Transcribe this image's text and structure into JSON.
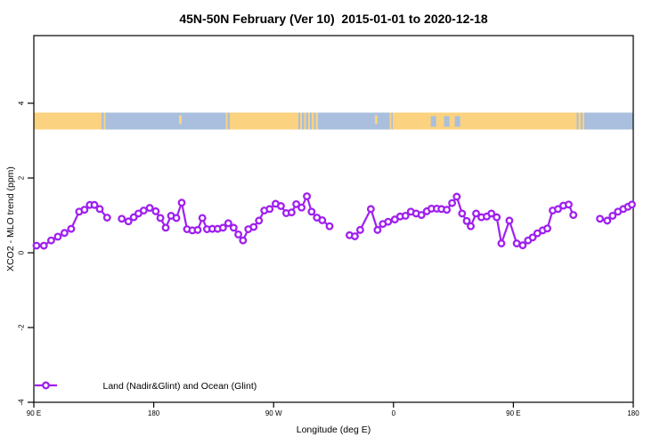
{
  "chart_data": {
    "type": "line",
    "title": "45N-50N February (Ver 10)  2015-01-01 to 2020-12-18",
    "xlabel": "Longitude (deg E)",
    "ylabel": "XCO2 - MLO trend (ppm)",
    "xlim": [
      90,
      540
    ],
    "ylim": [
      -4,
      5.8
    ],
    "grid": false,
    "legend_position": "bottom-left",
    "x_ticks": [
      {
        "lon": 90,
        "label": "90 E"
      },
      {
        "lon": 180,
        "label": "180"
      },
      {
        "lon": 270,
        "label": "90 W"
      },
      {
        "lon": 360,
        "label": "0"
      },
      {
        "lon": 450,
        "label": "90 E"
      },
      {
        "lon": 540,
        "label": "180"
      }
    ],
    "y_ticks": [
      -4,
      -2,
      0,
      2,
      4
    ],
    "series": [
      {
        "name": "Land (Nadir&Glint) and Ocean (Glint)",
        "color": "#A020F0",
        "marker": "open-circle",
        "segments": [
          [
            [
              92,
              0.19
            ],
            [
              97.5,
              0.19
            ],
            [
              103,
              0.33
            ],
            [
              108,
              0.43
            ],
            [
              113,
              0.53
            ],
            [
              118,
              0.64
            ],
            [
              124,
              1.1
            ],
            [
              128,
              1.15
            ],
            [
              132,
              1.28
            ],
            [
              135.5,
              1.28
            ],
            [
              139.5,
              1.17
            ],
            [
              145,
              0.94
            ]
          ],
          [
            [
              156,
              0.91
            ],
            [
              161,
              0.84
            ],
            [
              165,
              0.95
            ],
            [
              168.5,
              1.05
            ],
            [
              172.5,
              1.13
            ],
            [
              177,
              1.2
            ],
            [
              181.5,
              1.11
            ],
            [
              185,
              0.93
            ],
            [
              189,
              0.67
            ],
            [
              193,
              0.99
            ],
            [
              197,
              0.93
            ],
            [
              201,
              1.34
            ],
            [
              205,
              0.63
            ],
            [
              209,
              0.6
            ],
            [
              213,
              0.61
            ],
            [
              216.5,
              0.93
            ],
            [
              220,
              0.63
            ],
            [
              224,
              0.64
            ],
            [
              228,
              0.64
            ],
            [
              232,
              0.67
            ],
            [
              236,
              0.79
            ],
            [
              240,
              0.67
            ],
            [
              243.5,
              0.49
            ],
            [
              247,
              0.33
            ],
            [
              251,
              0.63
            ],
            [
              255,
              0.69
            ],
            [
              259,
              0.86
            ],
            [
              263,
              1.13
            ],
            [
              267,
              1.17
            ],
            [
              271.5,
              1.31
            ],
            [
              275.5,
              1.25
            ],
            [
              279.5,
              1.06
            ],
            [
              283.5,
              1.08
            ],
            [
              287,
              1.3
            ],
            [
              291,
              1.21
            ],
            [
              295,
              1.51
            ],
            [
              298.5,
              1.1
            ],
            [
              302.5,
              0.94
            ],
            [
              306.5,
              0.87
            ],
            [
              312,
              0.71
            ]
          ],
          [
            [
              327,
              0.47
            ],
            [
              331,
              0.44
            ],
            [
              335,
              0.61
            ],
            [
              343,
              1.17
            ],
            [
              348,
              0.61
            ],
            [
              352,
              0.77
            ],
            [
              356,
              0.83
            ],
            [
              361,
              0.89
            ],
            [
              365,
              0.97
            ],
            [
              369,
              0.99
            ],
            [
              373,
              1.1
            ],
            [
              377,
              1.05
            ],
            [
              381,
              1.01
            ],
            [
              385,
              1.11
            ],
            [
              388.5,
              1.18
            ],
            [
              392.5,
              1.18
            ],
            [
              396,
              1.17
            ],
            [
              400,
              1.15
            ],
            [
              404,
              1.33
            ],
            [
              407.5,
              1.5
            ],
            [
              411.5,
              1.05
            ],
            [
              415,
              0.85
            ],
            [
              418,
              0.71
            ],
            [
              422,
              1.05
            ],
            [
              426,
              0.95
            ],
            [
              430,
              0.97
            ],
            [
              433.5,
              1.05
            ],
            [
              437.5,
              0.95
            ],
            [
              441,
              0.25
            ],
            [
              447,
              0.86
            ],
            [
              452.5,
              0.25
            ],
            [
              457,
              0.2
            ],
            [
              461,
              0.33
            ],
            [
              464.5,
              0.41
            ],
            [
              468,
              0.52
            ],
            [
              472,
              0.6
            ],
            [
              475.5,
              0.65
            ],
            [
              479.5,
              1.13
            ],
            [
              483.5,
              1.17
            ],
            [
              487.5,
              1.26
            ],
            [
              491.5,
              1.29
            ],
            [
              495,
              1.01
            ]
          ],
          [
            [
              515,
              0.91
            ],
            [
              520.5,
              0.86
            ],
            [
              524.5,
              0.99
            ],
            [
              528.5,
              1.1
            ],
            [
              532.5,
              1.17
            ],
            [
              536,
              1.23
            ],
            [
              539,
              1.29
            ]
          ]
        ]
      }
    ],
    "surface_band": {
      "description": "land vs ocean surface type along longitude",
      "value_range": [
        3.3,
        3.75
      ],
      "land_color": "#FBD27F",
      "ocean_color": "#A9BFDD",
      "segments": [
        {
          "from": 90,
          "to": 139.5,
          "type": "land"
        },
        {
          "from": 139.5,
          "to": 145,
          "type": "mixed"
        },
        {
          "from": 145,
          "to": 234,
          "type": "ocean"
        },
        {
          "from": 234,
          "to": 237,
          "type": "mixed"
        },
        {
          "from": 237,
          "to": 287,
          "type": "land"
        },
        {
          "from": 287,
          "to": 304,
          "type": "mixed"
        },
        {
          "from": 304,
          "to": 357,
          "type": "ocean"
        },
        {
          "from": 357,
          "to": 359.5,
          "type": "mixed"
        },
        {
          "from": 359.5,
          "to": 496,
          "type": "land"
        },
        {
          "from": 496,
          "to": 504,
          "type": "mixed"
        },
        {
          "from": 504,
          "to": 540,
          "type": "ocean"
        }
      ],
      "ocean_specks": [
        [
          388,
          392
        ],
        [
          398,
          402
        ],
        [
          406,
          410
        ]
      ],
      "land_specks": [
        [
          199,
          201
        ],
        [
          346,
          348
        ]
      ]
    }
  }
}
